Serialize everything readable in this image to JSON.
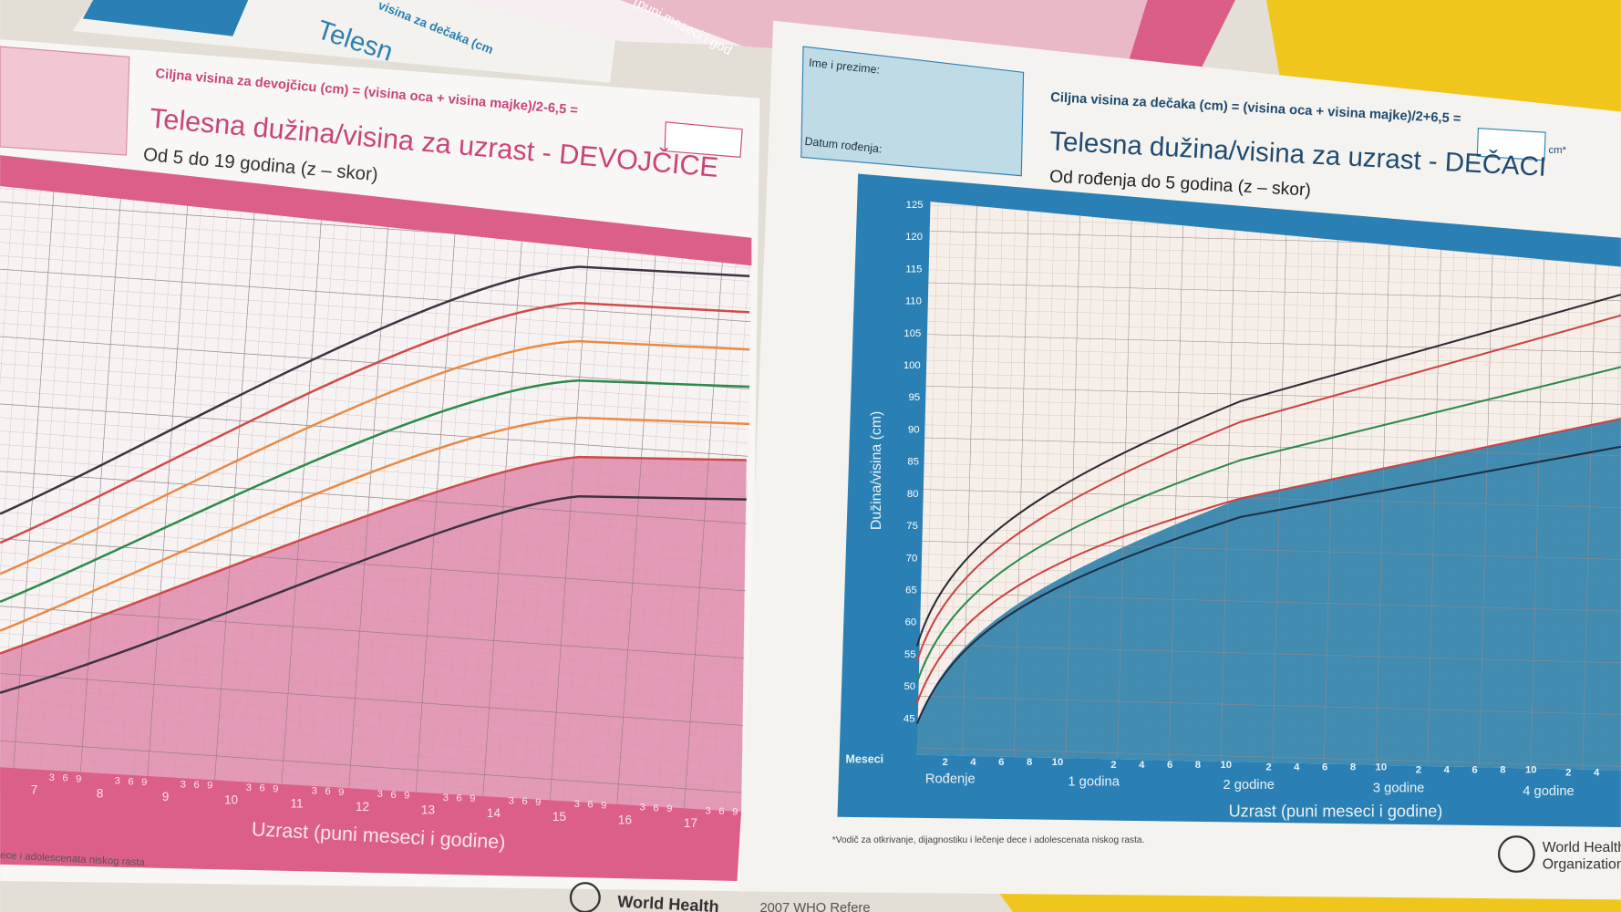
{
  "background_sheets": {
    "fragment_title": "Telesn",
    "fragment_formula": "visina za dečaka (cm",
    "fragment_axis": "(puni meseci i god"
  },
  "left_sheet": {
    "formula": "Ciljna visina za devojčicu (cm) = (visina oca + visina majke)/2-6,5 =",
    "title": "Telesna dužina/visina za uzrast - DEVOJČICE",
    "subtitle": "Od 5 do 19 godina (z – skor)",
    "age_labels": [
      "7",
      "8",
      "9",
      "10",
      "11",
      "12",
      "13",
      "14",
      "15",
      "16",
      "17"
    ],
    "month_labels": [
      "3",
      "6",
      "9"
    ],
    "x_axis_label": "Uzrast (puni meseci i godine)",
    "footnote": "ece i adolescenata niskog rasta.",
    "org": "World Health"
  },
  "right_sheet": {
    "name_label": "Ime i prezime:",
    "birth_label": "Datum rođenja:",
    "formula": "Ciljna visina za dečaka (cm) = (visina oca + visina majke)/2+6,5 =",
    "unit": "cm*",
    "title": "Telesna dužina/visina za uzrast - DEČACI",
    "subtitle": "Od rođenja do 5 godina (z – skor)",
    "y_axis_label": "Dužina/visina (cm)",
    "y_labels": [
      125,
      120,
      115,
      110,
      105,
      100,
      95,
      90,
      85,
      80,
      75,
      70,
      65,
      60,
      55,
      50,
      45
    ],
    "months_label": "Meseci",
    "month_labels": [
      "2",
      "4",
      "6",
      "8",
      "10"
    ],
    "age_labels": [
      "Rođenje",
      "1 godina",
      "2 godine",
      "3 godine",
      "4 godine"
    ],
    "x_axis_label": "Uzrast (puni meseci i godine)",
    "footnote": "*Vodič za otkrivanje, dijagnostiku i lečenje dece i adolescenata niskog rasta.",
    "org_line1": "World Health",
    "org_line2": "Organization"
  },
  "bottom_fragment": "2007 WHO Refere"
}
